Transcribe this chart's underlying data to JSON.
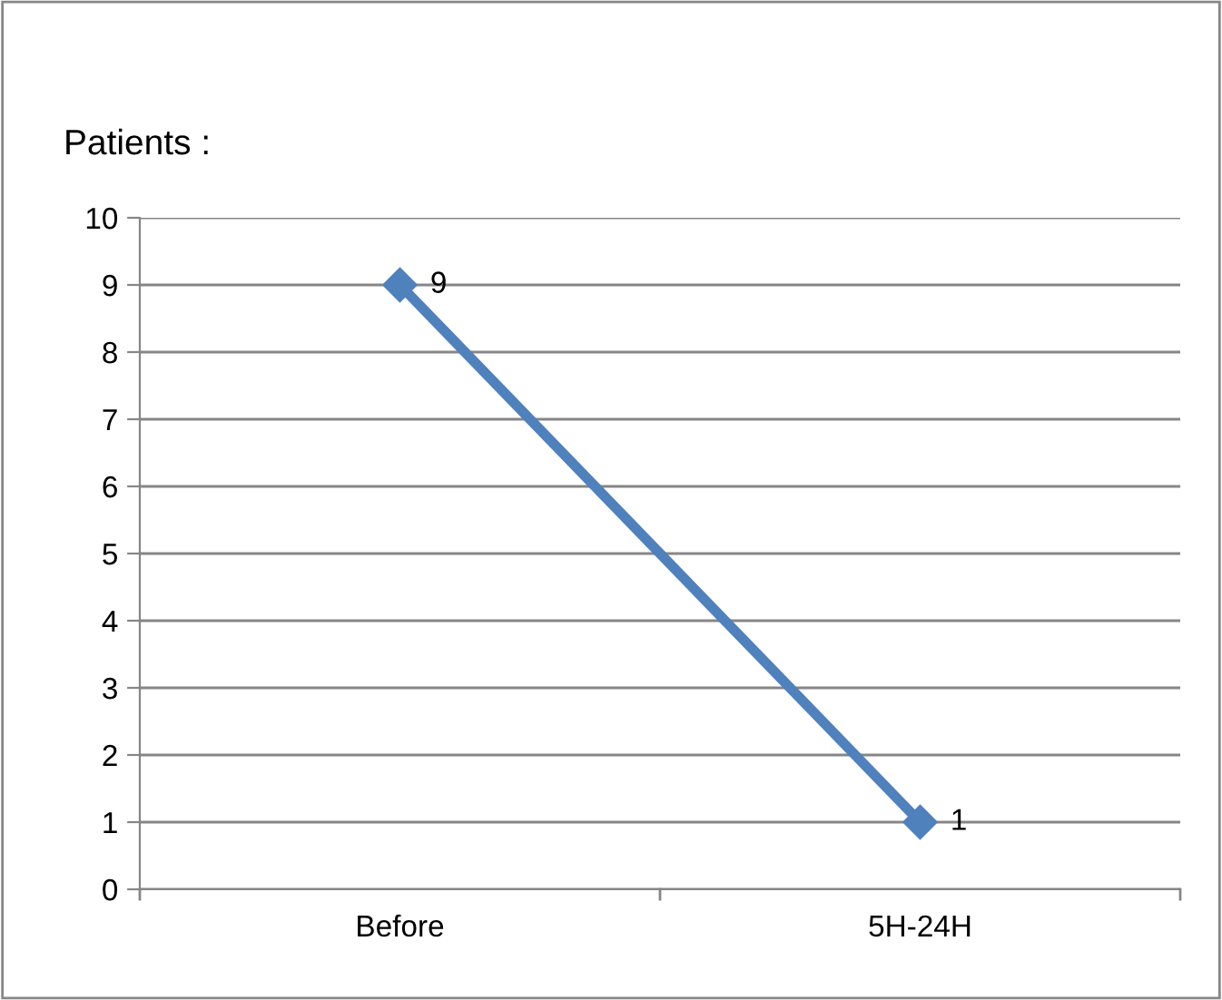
{
  "chart_data": {
    "type": "line",
    "title": "Patients :",
    "categories": [
      "Before",
      "5H-24H"
    ],
    "series": [
      {
        "color": "#4f81bd",
        "values": [
          9,
          1
        ]
      }
    ],
    "ylim": [
      0,
      10
    ],
    "yticks": [
      0,
      1,
      2,
      3,
      4,
      5,
      6,
      7,
      8,
      9,
      10
    ],
    "grid": "y",
    "legend": false,
    "marker": "diamond",
    "line_style": "solid",
    "data_labels": true
  }
}
